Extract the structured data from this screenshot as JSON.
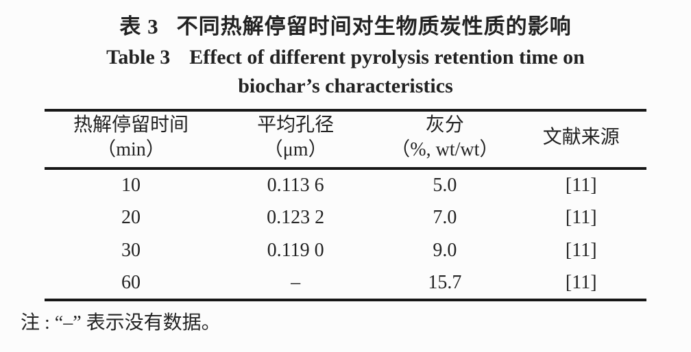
{
  "caption": {
    "cn_label": "表 3",
    "cn_text": "不同热解停留时间对生物质炭性质的影响",
    "en_label": "Table 3",
    "en_line1": "Effect of different pyrolysis retention time on",
    "en_line2": "biochar’s characteristics"
  },
  "table": {
    "columns": [
      {
        "title": "热解停留时间",
        "unit": "（min）"
      },
      {
        "title": "平均孔径",
        "unit": "（μm）"
      },
      {
        "title": "灰分",
        "unit": "（%, wt/wt）"
      },
      {
        "title": "文献来源",
        "unit": ""
      }
    ],
    "rows": [
      [
        "10",
        "0.113 6",
        "5.0",
        "[11]"
      ],
      [
        "20",
        "0.123 2",
        "7.0",
        "[11]"
      ],
      [
        "30",
        "0.119 0",
        "9.0",
        "[11]"
      ],
      [
        "60",
        "–",
        "15.7",
        "[11]"
      ]
    ]
  },
  "note": "注 : “–” 表示没有数据。",
  "colors": {
    "background": "#fcfcfc",
    "text": "#222222",
    "rule": "#171717"
  },
  "chart_data": {
    "type": "table",
    "title": "表 3 不同热解停留时间对生物质炭性质的影响 / Table 3 Effect of different pyrolysis retention time on biochar’s characteristics",
    "columns": [
      "热解停留时间（min）",
      "平均孔径（μm）",
      "灰分（%, wt/wt）",
      "文献来源"
    ],
    "rows": [
      [
        10,
        0.1136,
        5.0,
        "[11]"
      ],
      [
        20,
        0.1232,
        7.0,
        "[11]"
      ],
      [
        30,
        0.119,
        9.0,
        "[11]"
      ],
      [
        60,
        null,
        15.7,
        "[11]"
      ]
    ],
    "note": "“–” 表示没有数据"
  }
}
